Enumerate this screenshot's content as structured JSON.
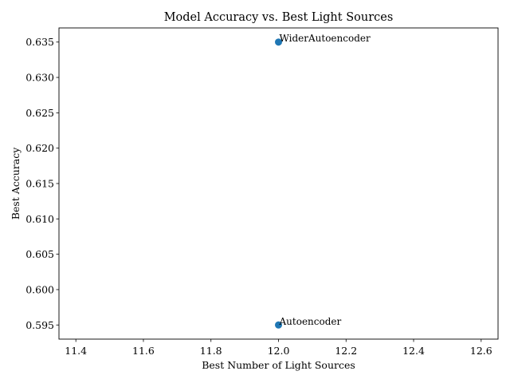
{
  "chart_data": {
    "type": "scatter",
    "title": "Model Accuracy vs. Best Light Sources",
    "xlabel": "Best Number of Light Sources",
    "ylabel": "Best Accuracy",
    "xlim": [
      11.35,
      12.65
    ],
    "ylim": [
      0.593,
      0.637
    ],
    "x_ticks": [
      11.4,
      11.6,
      11.8,
      12.0,
      12.2,
      12.4,
      12.6
    ],
    "x_tick_labels": [
      "11.4",
      "11.6",
      "11.8",
      "12.0",
      "12.2",
      "12.4",
      "12.6"
    ],
    "y_ticks": [
      0.595,
      0.6,
      0.605,
      0.61,
      0.615,
      0.62,
      0.625,
      0.63,
      0.635
    ],
    "y_tick_labels": [
      "0.595",
      "0.600",
      "0.605",
      "0.610",
      "0.615",
      "0.620",
      "0.625",
      "0.630",
      "0.635"
    ],
    "grid": false,
    "marker_color": "#1f77b4",
    "points": [
      {
        "label": "WiderAutoencoder",
        "x": 12,
        "y": 0.635
      },
      {
        "label": "Autoencoder",
        "x": 12,
        "y": 0.595
      }
    ]
  }
}
